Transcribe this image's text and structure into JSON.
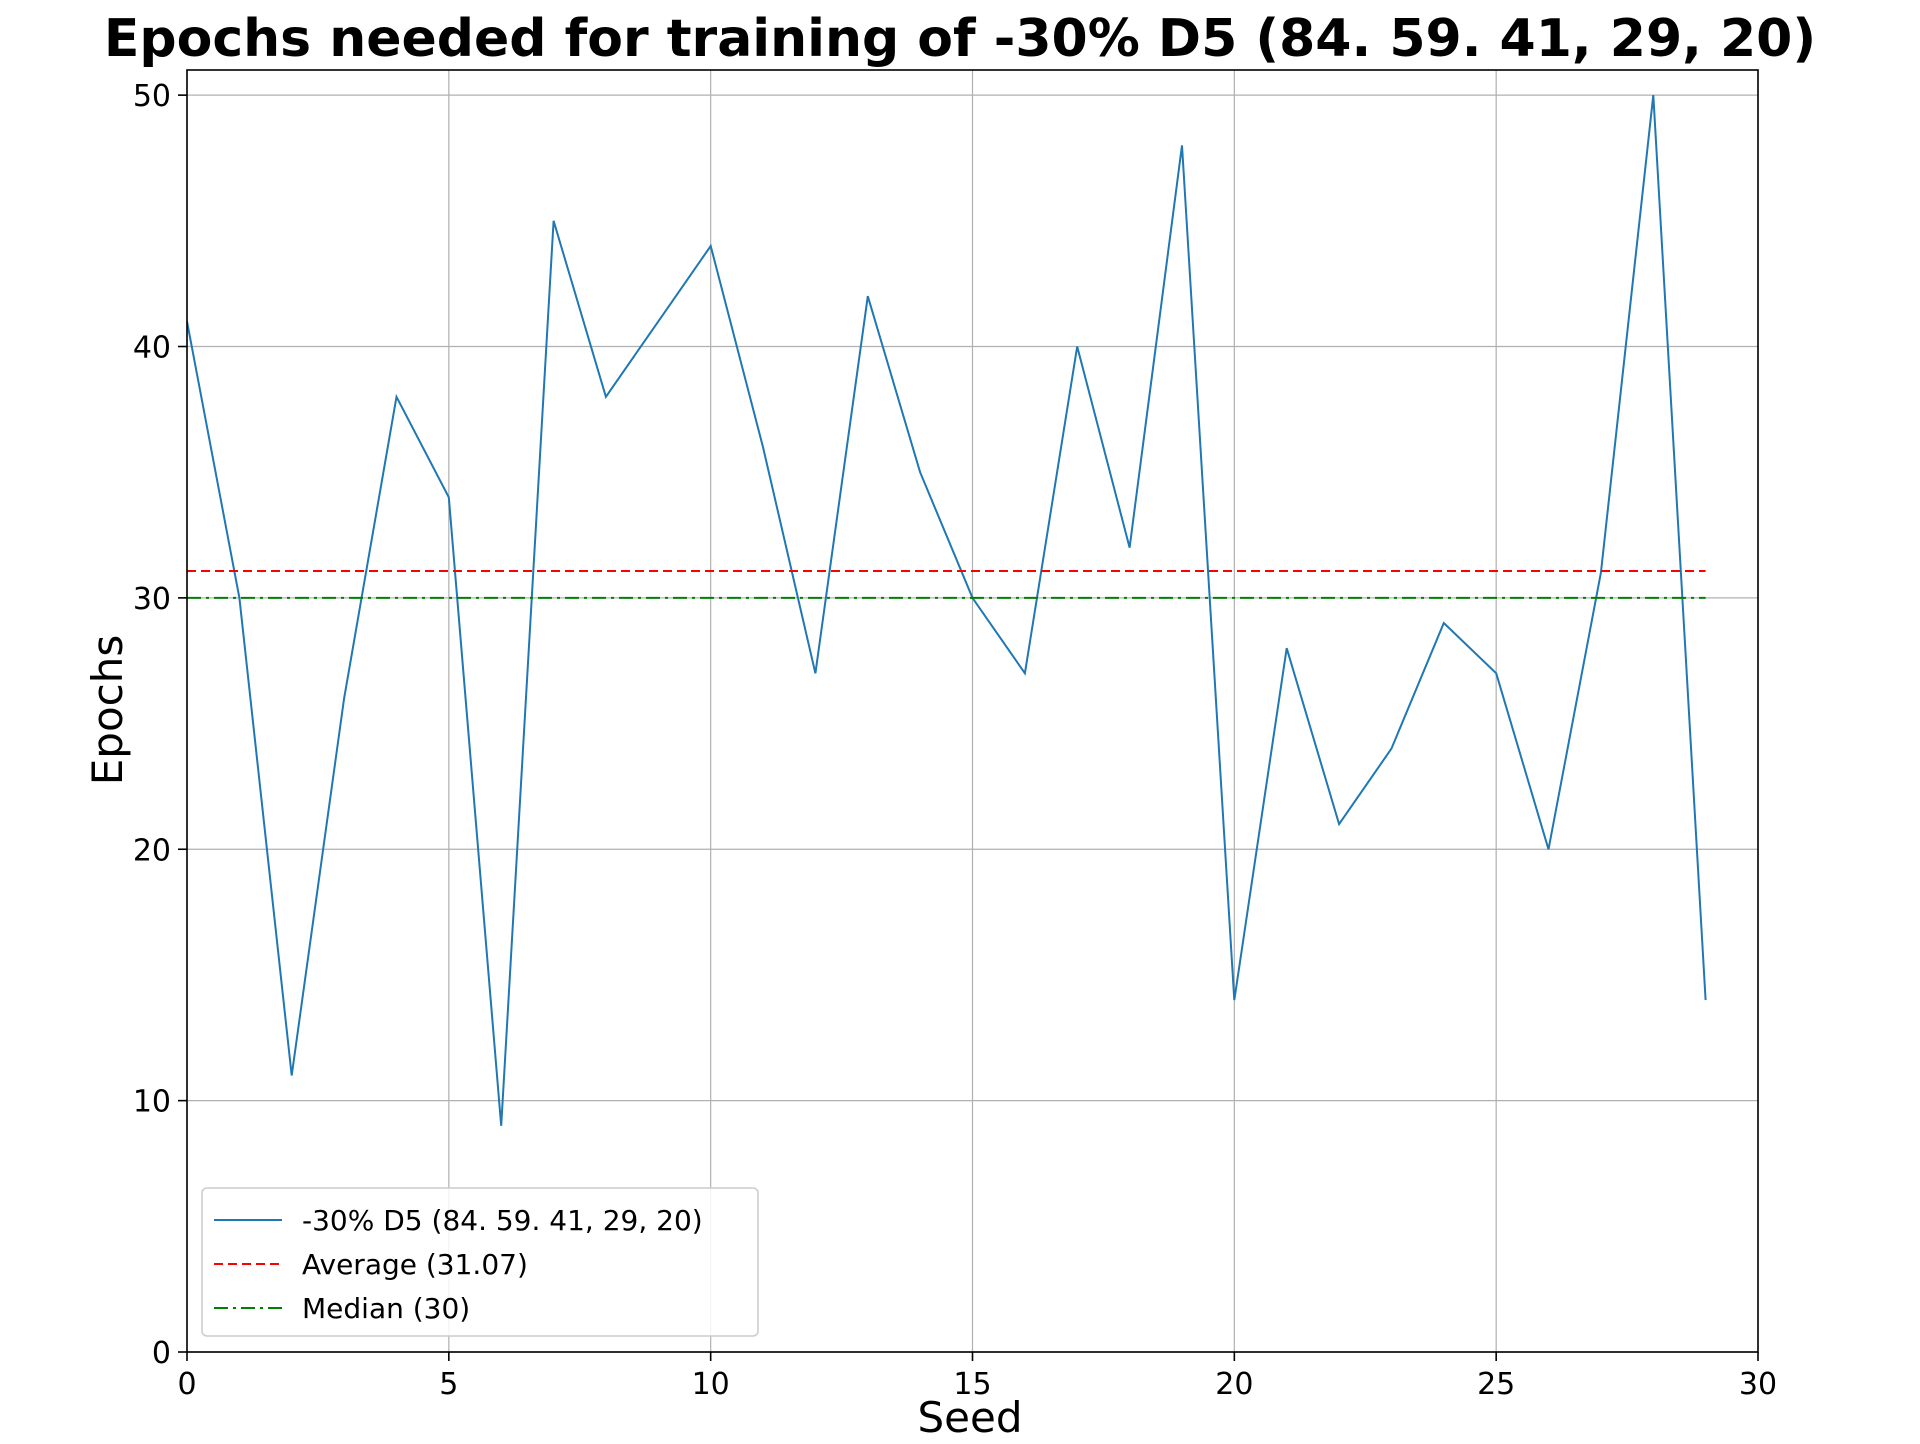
{
  "chart_data": {
    "type": "line",
    "title": "Epochs needed for training of -30% D5 (84. 59. 41, 29, 20)",
    "xlabel": "Seed",
    "ylabel": "Epochs",
    "xlim": [
      0,
      30
    ],
    "ylim": [
      0,
      51
    ],
    "x_ticks": [
      0,
      5,
      10,
      15,
      20,
      25,
      30
    ],
    "y_ticks": [
      0,
      10,
      20,
      30,
      40,
      50
    ],
    "grid": true,
    "legend_position": "lower-left",
    "series": [
      {
        "name": "-30% D5 (84. 59. 41, 29, 20)",
        "color": "#1f77b4",
        "style": "solid",
        "x": [
          0,
          1,
          2,
          3,
          4,
          5,
          6,
          7,
          8,
          9,
          10,
          11,
          12,
          13,
          14,
          15,
          16,
          17,
          18,
          19,
          20,
          21,
          22,
          23,
          24,
          25,
          26,
          27,
          28,
          29
        ],
        "values": [
          41,
          30,
          11,
          26,
          38,
          34,
          9,
          45,
          38,
          41,
          44,
          36,
          27,
          42,
          35,
          30,
          27,
          40,
          32,
          48,
          14,
          28,
          21,
          24,
          29,
          27,
          20,
          31,
          50,
          14
        ]
      },
      {
        "name": "Average (31.07)",
        "color": "#ff0000",
        "style": "dashed",
        "x": [
          0,
          29
        ],
        "values": [
          31.07,
          31.07
        ]
      },
      {
        "name": "Median (30)",
        "color": "#008000",
        "style": "dashdot",
        "x": [
          0,
          29
        ],
        "values": [
          30,
          30
        ]
      }
    ]
  }
}
